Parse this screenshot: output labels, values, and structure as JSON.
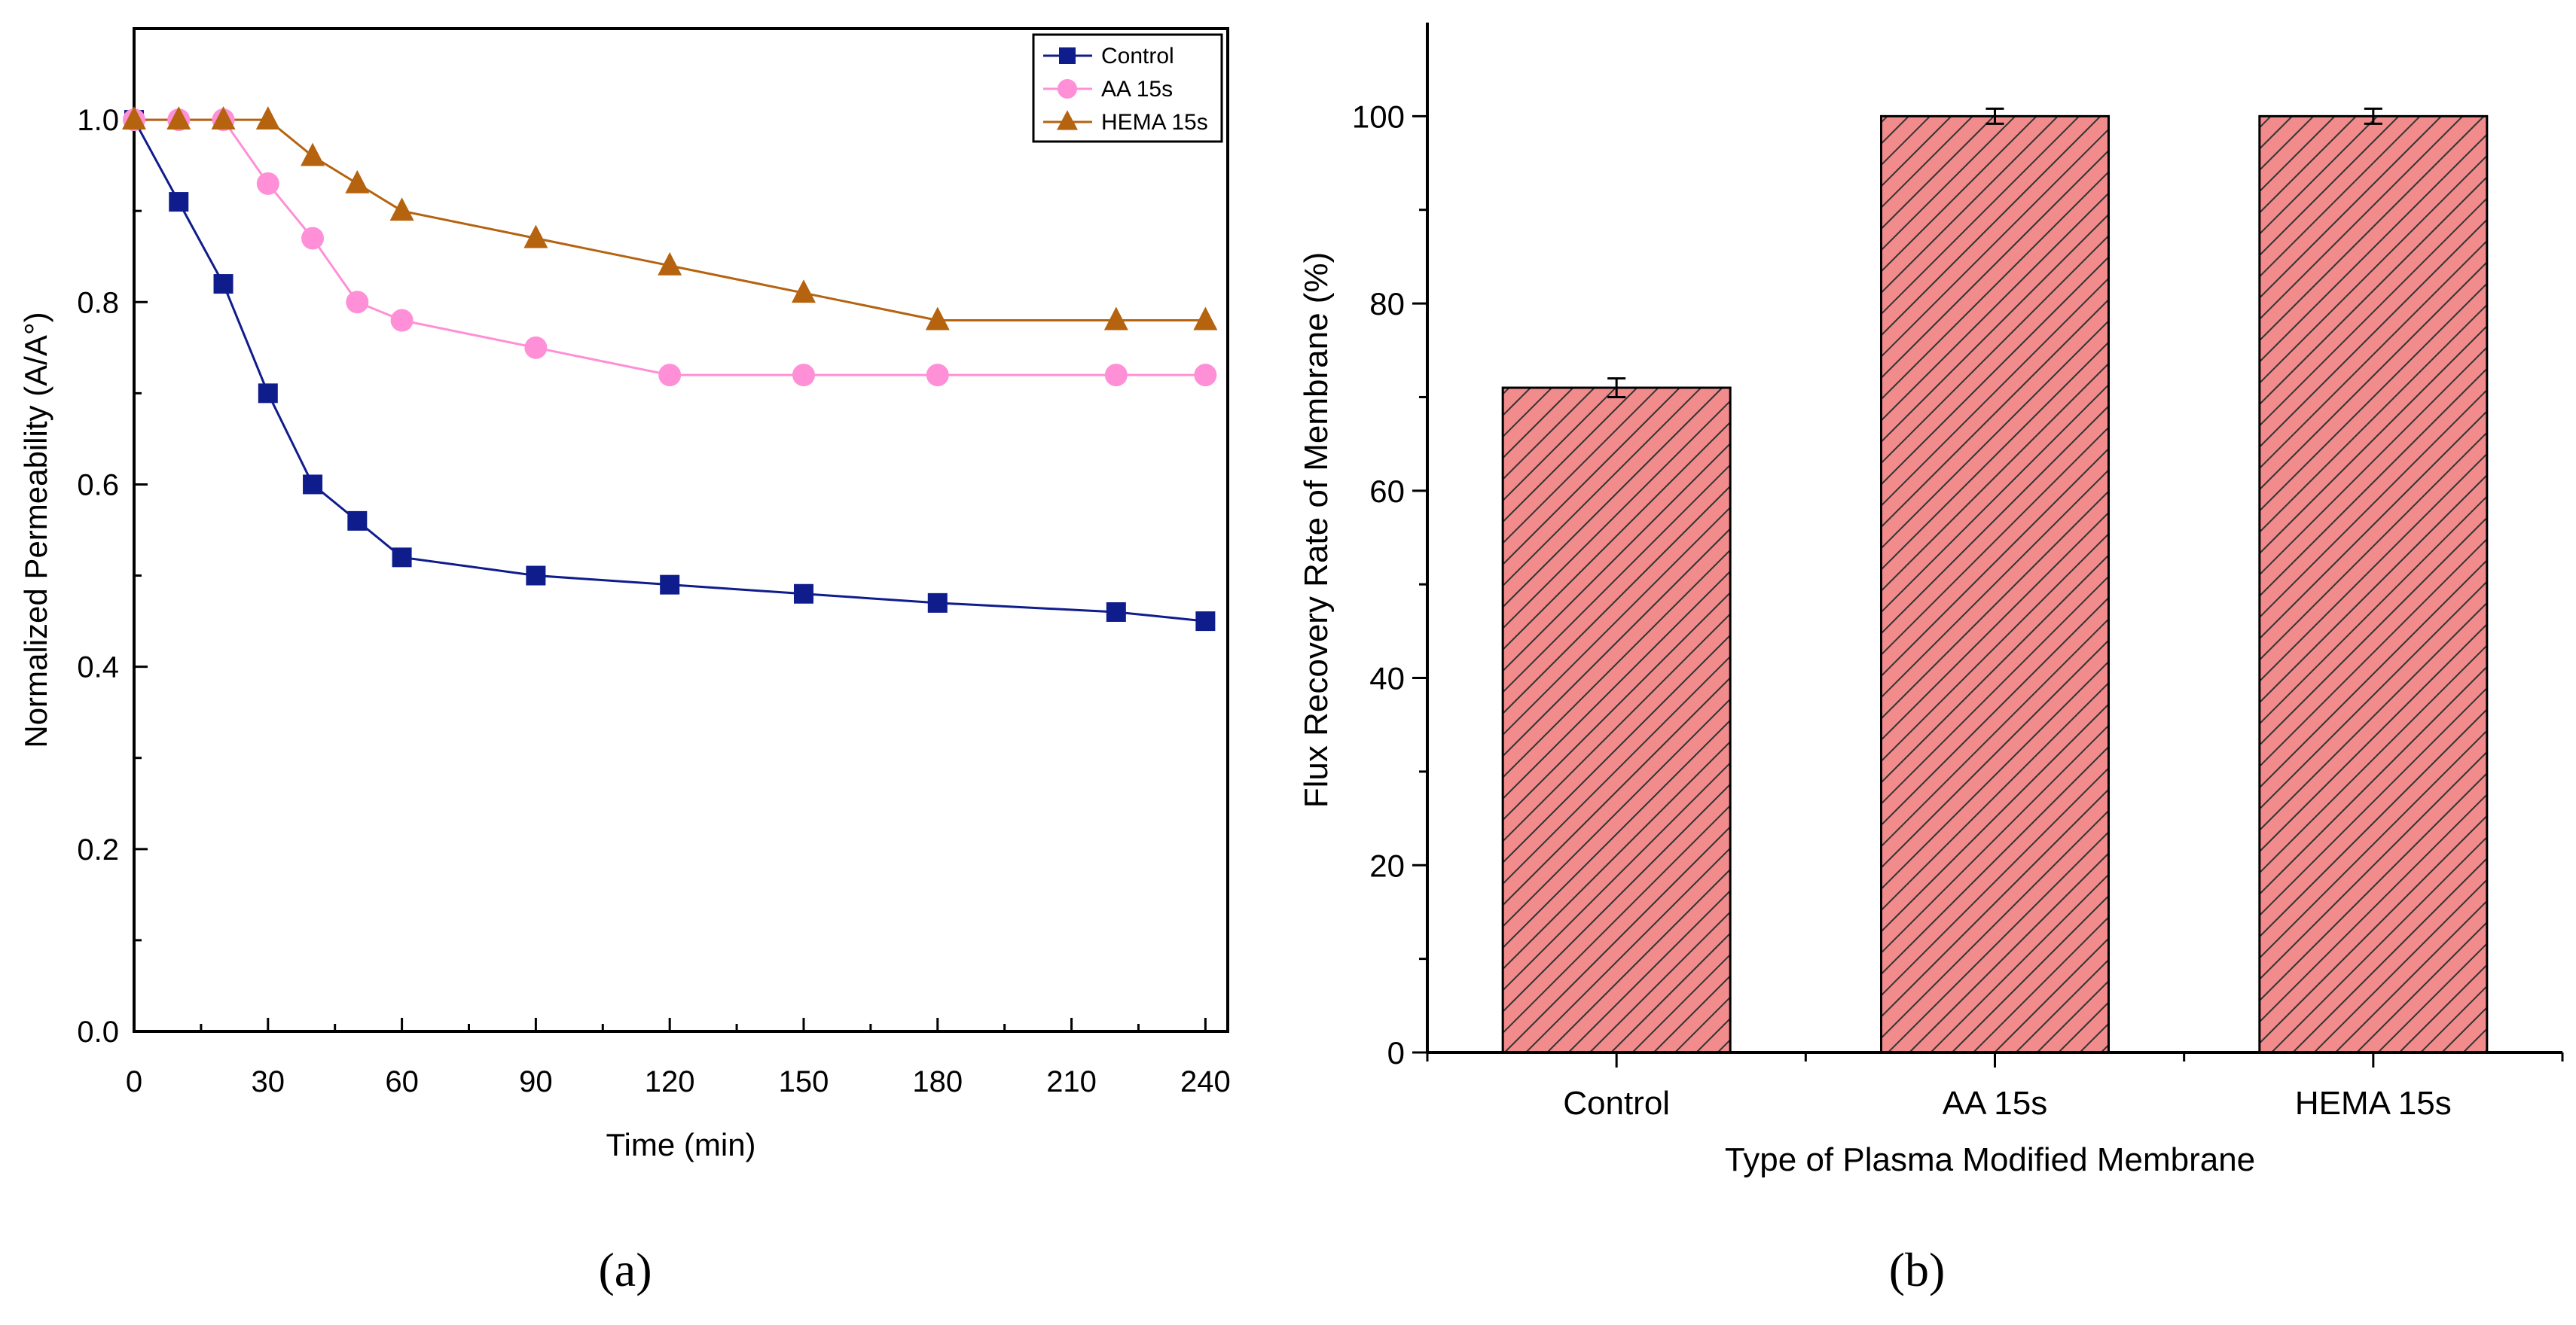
{
  "figure": {
    "panel_a_label": "(a)",
    "panel_b_label": "(b)"
  },
  "colors": {
    "control": "#0f1c8c",
    "aa": "#ff8fd6",
    "hema": "#b5630f",
    "bar_fill": "#f28b8b",
    "bar_hatch": "#333333"
  },
  "chart_data": [
    {
      "type": "line",
      "panel": "a",
      "title": "",
      "xlabel": "Time (min)",
      "ylabel": "Normalized Permeability (A/A°)",
      "xlim": [
        0,
        245
      ],
      "ylim": [
        0,
        1.1
      ],
      "xticks": [
        0,
        30,
        60,
        90,
        120,
        150,
        180,
        210,
        240
      ],
      "yticks": [
        0.0,
        0.2,
        0.4,
        0.6,
        0.8,
        1.0
      ],
      "xtick_labels": [
        "0",
        "30",
        "60",
        "90",
        "120",
        "150",
        "180",
        "210",
        "240"
      ],
      "ytick_labels": [
        "0.0",
        "0.2",
        "0.4",
        "0.6",
        "0.8",
        "1.0"
      ],
      "legend_position": "top-right",
      "series": [
        {
          "name": "Control",
          "marker": "square",
          "color_key": "control",
          "x": [
            0,
            10,
            20,
            30,
            40,
            50,
            60,
            90,
            120,
            150,
            180,
            220,
            240
          ],
          "y": [
            1.0,
            0.91,
            0.82,
            0.7,
            0.6,
            0.56,
            0.52,
            0.5,
            0.49,
            0.48,
            0.47,
            0.46,
            0.45
          ]
        },
        {
          "name": "AA 15s",
          "marker": "circle",
          "color_key": "aa",
          "x": [
            0,
            10,
            20,
            30,
            40,
            50,
            60,
            90,
            120,
            150,
            180,
            220,
            240
          ],
          "y": [
            1.0,
            1.0,
            1.0,
            0.93,
            0.87,
            0.8,
            0.78,
            0.75,
            0.72,
            0.72,
            0.72,
            0.72,
            0.72
          ]
        },
        {
          "name": "HEMA 15s",
          "marker": "triangle",
          "color_key": "hema",
          "x": [
            0,
            10,
            20,
            30,
            40,
            50,
            60,
            90,
            120,
            150,
            180,
            220,
            240
          ],
          "y": [
            1.0,
            1.0,
            1.0,
            1.0,
            0.96,
            0.93,
            0.9,
            0.87,
            0.84,
            0.81,
            0.78,
            0.78,
            0.78
          ]
        }
      ]
    },
    {
      "type": "bar",
      "panel": "b",
      "title": "",
      "xlabel": "Type of Plasma Modified Membrane",
      "ylabel": "Flux Recovery Rate of Membrane (%)",
      "ylim": [
        0,
        110
      ],
      "yticks": [
        0,
        20,
        40,
        60,
        80,
        100
      ],
      "ytick_labels": [
        "0",
        "20",
        "40",
        "60",
        "80",
        "100"
      ],
      "categories": [
        "Control",
        "AA 15s",
        "HEMA 15s"
      ],
      "values": [
        71,
        100,
        100
      ],
      "errors": [
        1,
        0.8,
        0.8
      ]
    }
  ]
}
